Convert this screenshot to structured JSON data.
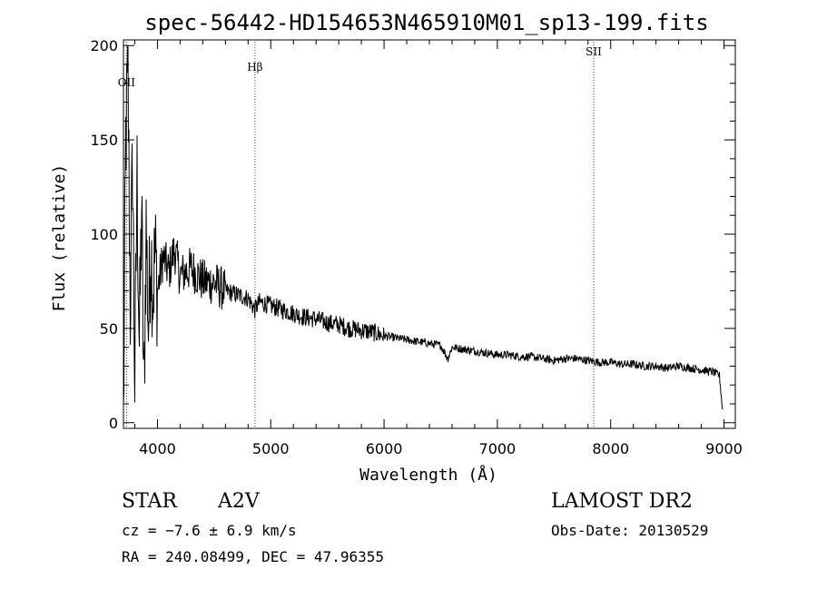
{
  "chart_data": {
    "type": "line",
    "title": "spec-56442-HD154653N465910M01_sp13-199.fits",
    "xlabel": "Wavelength (Å)",
    "ylabel": "Flux (relative)",
    "xlim": [
      3700,
      9100
    ],
    "ylim": [
      -3,
      203
    ],
    "x_ticks": [
      4000,
      5000,
      6000,
      7000,
      8000,
      9000
    ],
    "y_ticks": [
      0,
      50,
      100,
      150,
      200
    ],
    "series": [
      {
        "name": "spectrum",
        "x": [
          3700,
          3720,
          3740,
          3760,
          3780,
          3800,
          3820,
          3840,
          3860,
          3880,
          3900,
          3920,
          3940,
          3960,
          3980,
          4000,
          4050,
          4100,
          4150,
          4200,
          4300,
          4400,
          4500,
          4600,
          4700,
          4800,
          4860,
          4900,
          5000,
          5100,
          5200,
          5300,
          5400,
          5500,
          5600,
          5700,
          5800,
          5900,
          6000,
          6100,
          6200,
          6300,
          6400,
          6500,
          6563,
          6600,
          6700,
          6800,
          6900,
          7000,
          7100,
          7200,
          7300,
          7400,
          7500,
          7600,
          7700,
          7800,
          7900,
          8000,
          8100,
          8200,
          8300,
          8400,
          8500,
          8600,
          8700,
          8800,
          8900,
          8960,
          8990
        ],
        "y": [
          0,
          150,
          185,
          60,
          140,
          20,
          130,
          40,
          115,
          10,
          105,
          50,
          95,
          70,
          90,
          70,
          88,
          80,
          92,
          78,
          82,
          75,
          74,
          70,
          68,
          66,
          60,
          64,
          62,
          60,
          58,
          56,
          55,
          53,
          52,
          50,
          49,
          48,
          46,
          45,
          44,
          43,
          42,
          41,
          34,
          40,
          39,
          38,
          37,
          36,
          36,
          35,
          35,
          34,
          33,
          34,
          34,
          33,
          32,
          32,
          31,
          31,
          30,
          30,
          29,
          30,
          29,
          28,
          27,
          25,
          5
        ]
      }
    ],
    "annotations": [
      {
        "label": "OII",
        "x": 3727
      },
      {
        "label": "Hβ",
        "x": 4861
      },
      {
        "label": "SII",
        "x": 7850
      }
    ],
    "grid": false,
    "legend": "none"
  },
  "footer": {
    "object_type": "STAR",
    "spectral_class": "A2V",
    "cz": "cz = −7.6 ± 6.9 km/s",
    "coords": "RA = 240.08499, DEC =  47.96355",
    "survey": "LAMOST DR2",
    "obs_date": "Obs-Date: 20130529"
  }
}
